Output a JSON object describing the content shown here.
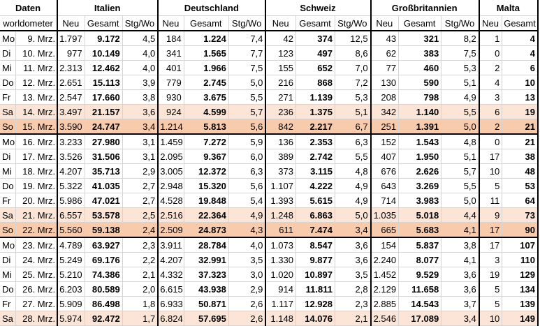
{
  "header": {
    "daten": "Daten",
    "source": "worldometer",
    "countries": [
      "Italien",
      "Deutschland",
      "Schweiz",
      "Großbritannien",
      "Malta"
    ],
    "col_neu": "Neu",
    "col_gesamt": "Gesamt",
    "col_stg": "Stg/Wo"
  },
  "weeks": [
    {
      "rows": [
        {
          "day": "Mo",
          "date": "9. Mrz.",
          "type": "wd",
          "it": [
            "1.797",
            "9.172",
            "4,5"
          ],
          "de": [
            "184",
            "1.224",
            "7,4"
          ],
          "ch": [
            "42",
            "374",
            "12,5"
          ],
          "gb": [
            "43",
            "321",
            "8,2"
          ],
          "mt": [
            "1",
            "4"
          ]
        },
        {
          "day": "Di",
          "date": "10. Mrz.",
          "type": "wd",
          "it": [
            "977",
            "10.149",
            "4,0"
          ],
          "de": [
            "341",
            "1.565",
            "7,7"
          ],
          "ch": [
            "123",
            "497",
            "8,6"
          ],
          "gb": [
            "62",
            "383",
            "7,5"
          ],
          "mt": [
            "0",
            "4"
          ]
        },
        {
          "day": "Mi",
          "date": "11. Mrz.",
          "type": "wd",
          "it": [
            "2.313",
            "12.462",
            "4,0"
          ],
          "de": [
            "401",
            "1.966",
            "7,5"
          ],
          "ch": [
            "155",
            "652",
            "7,0"
          ],
          "gb": [
            "77",
            "460",
            "5,3"
          ],
          "mt": [
            "2",
            "6"
          ]
        },
        {
          "day": "Do",
          "date": "12. Mrz.",
          "type": "wd",
          "it": [
            "2.651",
            "15.113",
            "3,9"
          ],
          "de": [
            "779",
            "2.745",
            "5,0"
          ],
          "ch": [
            "216",
            "868",
            "7,2"
          ],
          "gb": [
            "130",
            "590",
            "5,1"
          ],
          "mt": [
            "4",
            "10"
          ]
        },
        {
          "day": "Fr",
          "date": "13. Mrz.",
          "type": "wd",
          "it": [
            "2.547",
            "17.660",
            "3,8"
          ],
          "de": [
            "930",
            "3.675",
            "5,5"
          ],
          "ch": [
            "271",
            "1.139",
            "5,3"
          ],
          "gb": [
            "208",
            "798",
            "4,9"
          ],
          "mt": [
            "3",
            "13"
          ]
        },
        {
          "day": "Sa",
          "date": "14. Mrz.",
          "type": "sa",
          "it": [
            "3.497",
            "21.157",
            "3,6"
          ],
          "de": [
            "924",
            "4.599",
            "5,7"
          ],
          "ch": [
            "236",
            "1.375",
            "5,1"
          ],
          "gb": [
            "342",
            "1.140",
            "5,5"
          ],
          "mt": [
            "6",
            "19"
          ]
        },
        {
          "day": "So",
          "date": "15. Mrz.",
          "type": "so",
          "it": [
            "3.590",
            "24.747",
            "3,4"
          ],
          "de": [
            "1.214",
            "5.813",
            "5,6"
          ],
          "ch": [
            "842",
            "2.217",
            "6,7"
          ],
          "gb": [
            "251",
            "1.391",
            "5,0"
          ],
          "mt": [
            "2",
            "21"
          ]
        }
      ]
    },
    {
      "rows": [
        {
          "day": "Mo",
          "date": "16. Mrz.",
          "type": "wd",
          "it": [
            "3.233",
            "27.980",
            "3,1"
          ],
          "de": [
            "1.459",
            "7.272",
            "5,9"
          ],
          "ch": [
            "136",
            "2.353",
            "6,3"
          ],
          "gb": [
            "152",
            "1.543",
            "4,8"
          ],
          "mt": [
            "0",
            "21"
          ]
        },
        {
          "day": "Di",
          "date": "17. Mrz.",
          "type": "wd",
          "it": [
            "3.526",
            "31.506",
            "3,1"
          ],
          "de": [
            "2.095",
            "9.367",
            "6,0"
          ],
          "ch": [
            "389",
            "2.742",
            "5,5"
          ],
          "gb": [
            "407",
            "1.950",
            "5,1"
          ],
          "mt": [
            "17",
            "38"
          ]
        },
        {
          "day": "Mi",
          "date": "18. Mrz.",
          "type": "wd",
          "it": [
            "4.207",
            "35.713",
            "2,9"
          ],
          "de": [
            "3.005",
            "12.372",
            "6,3"
          ],
          "ch": [
            "373",
            "3.115",
            "4,8"
          ],
          "gb": [
            "676",
            "2.626",
            "5,7"
          ],
          "mt": [
            "10",
            "48"
          ]
        },
        {
          "day": "Do",
          "date": "19. Mrz.",
          "type": "wd",
          "it": [
            "5.322",
            "41.035",
            "2,7"
          ],
          "de": [
            "2.948",
            "15.320",
            "5,6"
          ],
          "ch": [
            "1.107",
            "4.222",
            "4,9"
          ],
          "gb": [
            "643",
            "3.269",
            "5,5"
          ],
          "mt": [
            "5",
            "53"
          ]
        },
        {
          "day": "Fr",
          "date": "20. Mrz.",
          "type": "wd",
          "it": [
            "5.986",
            "47.021",
            "2,7"
          ],
          "de": [
            "4.528",
            "19.848",
            "5,4"
          ],
          "ch": [
            "1.393",
            "5.615",
            "4,9"
          ],
          "gb": [
            "714",
            "3.983",
            "5,0"
          ],
          "mt": [
            "11",
            "64"
          ]
        },
        {
          "day": "Sa",
          "date": "21. Mrz.",
          "type": "sa",
          "it": [
            "6.557",
            "53.578",
            "2,5"
          ],
          "de": [
            "2.516",
            "22.364",
            "4,9"
          ],
          "ch": [
            "1.248",
            "6.863",
            "5,0"
          ],
          "gb": [
            "1.035",
            "5.018",
            "4,4"
          ],
          "mt": [
            "9",
            "73"
          ]
        },
        {
          "day": "So",
          "date": "22. Mrz.",
          "type": "so",
          "it": [
            "5.560",
            "59.138",
            "2,4"
          ],
          "de": [
            "2.509",
            "24.873",
            "4,3"
          ],
          "ch": [
            "611",
            "7.474",
            "3,4"
          ],
          "gb": [
            "665",
            "5.683",
            "4,1"
          ],
          "mt": [
            "17",
            "90"
          ]
        }
      ]
    },
    {
      "rows": [
        {
          "day": "Mo",
          "date": "23. Mrz.",
          "type": "wd",
          "it": [
            "4.789",
            "63.927",
            "2,3"
          ],
          "de": [
            "3.911",
            "28.784",
            "4,0"
          ],
          "ch": [
            "1.073",
            "8.547",
            "3,6"
          ],
          "gb": [
            "154",
            "5.837",
            "3,8"
          ],
          "mt": [
            "17",
            "107"
          ]
        },
        {
          "day": "Di",
          "date": "24. Mrz.",
          "type": "wd",
          "it": [
            "5.249",
            "69.176",
            "2,2"
          ],
          "de": [
            "4.207",
            "32.991",
            "3,5"
          ],
          "ch": [
            "1.330",
            "9.877",
            "3,6"
          ],
          "gb": [
            "2.240",
            "8.077",
            "4,1"
          ],
          "mt": [
            "3",
            "110"
          ]
        },
        {
          "day": "Mi",
          "date": "25. Mrz.",
          "type": "wd",
          "it": [
            "5.210",
            "74.386",
            "2,1"
          ],
          "de": [
            "4.332",
            "37.323",
            "3,0"
          ],
          "ch": [
            "1.020",
            "10.897",
            "3,5"
          ],
          "gb": [
            "1.452",
            "9.529",
            "3,6"
          ],
          "mt": [
            "19",
            "129"
          ]
        },
        {
          "day": "Do",
          "date": "26. Mrz.",
          "type": "wd",
          "it": [
            "6.203",
            "80.589",
            "2,0"
          ],
          "de": [
            "6.615",
            "43.938",
            "2,9"
          ],
          "ch": [
            "914",
            "11.811",
            "2,8"
          ],
          "gb": [
            "2.129",
            "11.658",
            "3,6"
          ],
          "mt": [
            "5",
            "134"
          ]
        },
        {
          "day": "Fr",
          "date": "27. Mrz.",
          "type": "wd",
          "it": [
            "5.909",
            "86.498",
            "1,8"
          ],
          "de": [
            "6.933",
            "50.871",
            "2,6"
          ],
          "ch": [
            "1.117",
            "12.928",
            "2,3"
          ],
          "gb": [
            "2.885",
            "14.543",
            "3,7"
          ],
          "mt": [
            "5",
            "139"
          ]
        },
        {
          "day": "Sa",
          "date": "28. Mrz.",
          "type": "sa",
          "it": [
            "5.974",
            "92.472",
            "1,7"
          ],
          "de": [
            "6.824",
            "57.695",
            "2,6"
          ],
          "ch": [
            "1.148",
            "14.076",
            "2,1"
          ],
          "gb": [
            "2.546",
            "17.089",
            "3,4"
          ],
          "mt": [
            "10",
            "149"
          ]
        }
      ]
    }
  ]
}
